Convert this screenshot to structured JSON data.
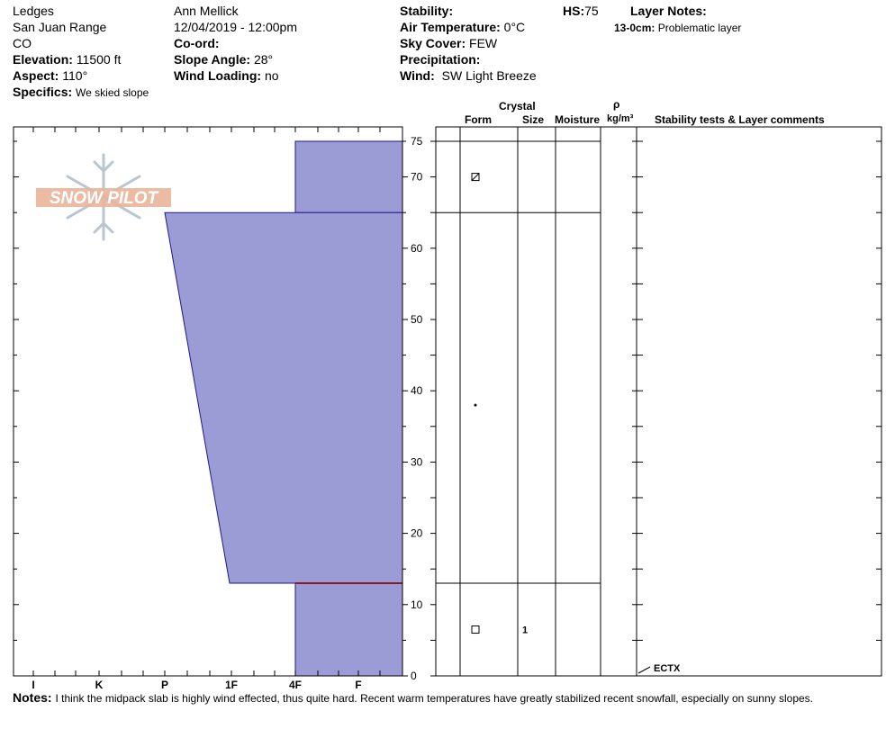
{
  "header": {
    "location": "Ledges",
    "range": "San Juan Range",
    "state": "CO",
    "elevation_label": "Elevation:",
    "elevation_value": "11500 ft",
    "aspect_label": "Aspect:",
    "aspect_value": "110°",
    "specifics_label": "Specifics:",
    "specifics_value": "We skied slope",
    "observer": "Ann Mellick",
    "datetime": "12/04/2019 - 12:00pm",
    "coord_label": "Co-ord:",
    "slope_label": "Slope Angle:",
    "slope_value": "28°",
    "wind_loading_label": "Wind Loading:",
    "wind_loading_value": "no",
    "stability_label": "Stability:",
    "air_temp_label": "Air Temperature:",
    "air_temp_value": "0°C",
    "sky_label": "Sky Cover:",
    "sky_value": "FEW",
    "precip_label": "Precipitation:",
    "wind_label": "Wind:",
    "wind_value": "SW Light Breeze",
    "hs_label": "HS:",
    "hs_value": "75",
    "layer_notes_label": "Layer Notes:",
    "layer_note_depth": "13-0cm:",
    "layer_note_text": "Problematic layer"
  },
  "logo": {
    "text": "SNOW PILOT"
  },
  "table_headers": {
    "crystal": "Crystal",
    "form": "Form",
    "size": "Size",
    "moisture": "Moisture",
    "rho": "ρ",
    "density_unit": "kg/m³",
    "comments": "Stability tests & Layer comments"
  },
  "test_label": "ECTX",
  "notes": {
    "label": "Notes:",
    "text": "I think the midpack slab is highly wind effected, thus quite hard. Recent warm temperatures have greatly stabilized recent snowfall, especially on sunny slopes."
  },
  "colors": {
    "fill": "#9b9bd6",
    "stroke": "#1a1a8c",
    "weak_layer": "#8b1a2e",
    "logo": "#e9b49a"
  },
  "chart_data": {
    "type": "area",
    "xlabel": "",
    "ylabel": "",
    "x_categories": [
      "I",
      "K",
      "P",
      "1F",
      "4F",
      "F"
    ],
    "y_ticks": [
      0,
      10,
      20,
      30,
      40,
      50,
      60,
      70,
      75
    ],
    "ylim": [
      0,
      75
    ],
    "layers": [
      {
        "top": 75,
        "bottom": 65,
        "hardness_top": "4F",
        "hardness_bottom": "4F",
        "form": "faceted-rounded",
        "size": "",
        "moisture": ""
      },
      {
        "top": 65,
        "bottom": 13,
        "hardness_top": "P",
        "hardness_bottom": "1F-",
        "form": "precipitation-particles",
        "size": "",
        "moisture": ""
      },
      {
        "top": 13,
        "bottom": 0,
        "hardness_top": "4F",
        "hardness_bottom": "4F",
        "form": "faceted-crystals",
        "size": "1",
        "moisture": ""
      }
    ],
    "weak_layer_depth": 13,
    "stability_tests": [
      {
        "depth": 0,
        "result": "ECTX"
      }
    ]
  }
}
